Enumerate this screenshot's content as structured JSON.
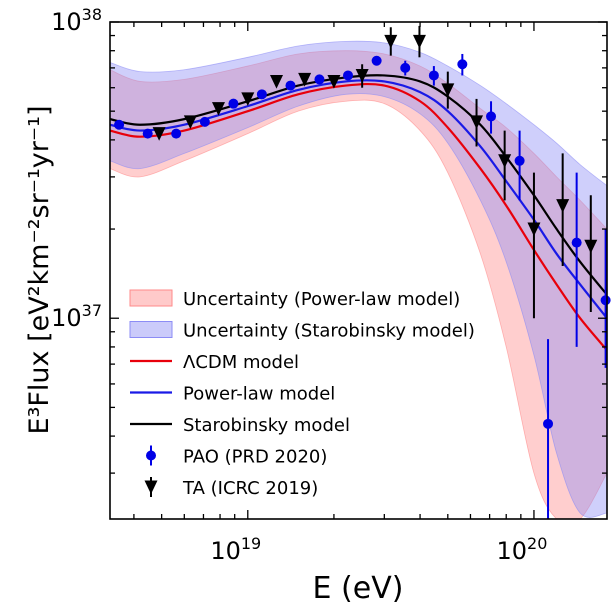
{
  "chart_data": {
    "type": "scatter",
    "title": "",
    "xlabel": "E (eV)",
    "ylabel": "E³Flux [eV²km⁻²sr⁻¹yr⁻¹]",
    "xscale": "log",
    "yscale": "log",
    "xlim": [
      3.3e+18,
      1.8e+20
    ],
    "ylim": [
      2.1e+36,
      1e+38
    ],
    "x_ticks": [
      {
        "value": 1e+19,
        "base": "10",
        "exp": "19"
      },
      {
        "value": 1e+20,
        "base": "10",
        "exp": "20"
      }
    ],
    "y_ticks": [
      {
        "value": 1e+37,
        "base": "10",
        "exp": "37"
      },
      {
        "value": 1e+38,
        "base": "10",
        "exp": "38"
      }
    ],
    "bands": [
      {
        "name": "Uncertainty (Power-law model)",
        "color": "#ff8a8a",
        "opacity": 0.42,
        "x": [
          3.3e+18,
          4.2e+18,
          6e+18,
          1e+19,
          1.5e+19,
          2.2e+19,
          3e+19,
          4e+19,
          5e+19,
          6.5e+19,
          8e+19,
          1e+20,
          1.2e+20,
          1.45e+20,
          1.8e+20
        ],
        "upper": [
          6.9e+37,
          6.3e+37,
          6.4e+37,
          7.1e+37,
          7.8e+37,
          8e+37,
          7.8e+37,
          7.1e+37,
          6.2e+37,
          5.1e+37,
          4.4e+37,
          3.6e+37,
          3e+37,
          2.5e+37,
          2e+37
        ],
        "lower": [
          3.2e+37,
          3e+37,
          3.4e+37,
          4.2e+37,
          5e+37,
          5.4e+37,
          5.3e+37,
          4.3e+37,
          3.1e+37,
          1.65e+37,
          8e+36,
          3e+36,
          2.1e+36,
          2.1e+36,
          3e+36
        ]
      },
      {
        "name": "Uncertainty (Starobinsky model)",
        "color": "#8c8cf5",
        "opacity": 0.42,
        "x": [
          3.3e+18,
          4.2e+18,
          6e+18,
          1e+19,
          1.5e+19,
          2.2e+19,
          3e+19,
          4e+19,
          5e+19,
          6.5e+19,
          8e+19,
          1e+20,
          1.2e+20,
          1.45e+20,
          1.8e+20
        ],
        "upper": [
          7.3e+37,
          6.8e+37,
          6.9e+37,
          7.6e+37,
          8.3e+37,
          8.6e+37,
          8.5e+37,
          7.9e+37,
          7.1e+37,
          6.1e+37,
          5.3e+37,
          4.5e+37,
          3.9e+37,
          3.3e+37,
          2.8e+37
        ],
        "lower": [
          3.4e+37,
          3.2e+37,
          3.6e+37,
          4.4e+37,
          5.2e+37,
          5.7e+37,
          5.6e+37,
          4.9e+37,
          3.9e+37,
          2.5e+37,
          1.55e+37,
          7.5e+36,
          3.5e+36,
          2.2e+36,
          2.2e+36
        ]
      }
    ],
    "series": [
      {
        "name": "ΛCDM model",
        "color": "#e8000b",
        "x": [
          3.3e+18,
          4.2e+18,
          6e+18,
          1e+19,
          1.5e+19,
          2.2e+19,
          3e+19,
          4e+19,
          5e+19,
          6.5e+19,
          8e+19,
          1e+20,
          1.2e+20,
          1.45e+20,
          1.8e+20
        ],
        "values": [
          4.3e+37,
          4.1e+37,
          4.3e+37,
          5e+37,
          5.7e+37,
          6.1e+37,
          6.1e+37,
          5.4e+37,
          4.4e+37,
          3.2e+37,
          2.4e+37,
          1.7e+37,
          1.3e+37,
          1e+37,
          7.8e+36
        ]
      },
      {
        "name": "Power-law model",
        "color": "#1a1ae6",
        "x": [
          3.3e+18,
          4.2e+18,
          6e+18,
          1e+19,
          1.5e+19,
          2.2e+19,
          3e+19,
          4e+19,
          5e+19,
          6.5e+19,
          8e+19,
          1e+20,
          1.2e+20,
          1.45e+20,
          1.8e+20
        ],
        "values": [
          4.5e+37,
          4.3e+37,
          4.5e+37,
          5.2e+37,
          5.9e+37,
          6.3e+37,
          6.3e+37,
          5.8e+37,
          5e+37,
          3.8e+37,
          2.9e+37,
          2.15e+37,
          1.65e+37,
          1.3e+37,
          1e+37
        ]
      },
      {
        "name": "Starobinsky model",
        "color": "#000000",
        "x": [
          3.3e+18,
          4.2e+18,
          6e+18,
          1e+19,
          1.5e+19,
          2.2e+19,
          3e+19,
          4e+19,
          5e+19,
          6.5e+19,
          8e+19,
          1e+20,
          1.2e+20,
          1.45e+20,
          1.8e+20
        ],
        "values": [
          4.7e+37,
          4.5e+37,
          4.7e+37,
          5.4e+37,
          6.1e+37,
          6.5e+37,
          6.6e+37,
          6.3e+37,
          5.6e+37,
          4.5e+37,
          3.5e+37,
          2.6e+37,
          2e+37,
          1.55e+37,
          1.2e+37
        ]
      }
    ],
    "points": [
      {
        "name": "PAO (PRD 2020)",
        "marker": "circle",
        "color": "#0000e6",
        "x": [
          3.55e+18,
          4.47e+18,
          5.62e+18,
          7.08e+18,
          8.91e+18,
          1.12e+19,
          1.41e+19,
          1.78e+19,
          2.24e+19,
          2.82e+19,
          3.55e+19,
          4.47e+19,
          5.62e+19,
          7.08e+19,
          8.91e+19,
          1.12e+20,
          1.41e+20,
          1.78e+20
        ],
        "y": [
          4.5e+37,
          4.2e+37,
          4.2e+37,
          4.6e+37,
          5.3e+37,
          5.7e+37,
          6.1e+37,
          6.4e+37,
          6.6e+37,
          7.4e+37,
          7e+37,
          6.6e+37,
          7.2e+37,
          4.8e+37,
          3.4e+37,
          4.4e+36,
          1.8e+37,
          1.15e+37
        ],
        "y_lo": [
          4.5e+37,
          4.2e+37,
          4.2e+37,
          4.6e+37,
          5.3e+37,
          5.7e+37,
          6.1e+37,
          6.4e+37,
          6.6e+37,
          7.4e+37,
          6.6e+37,
          6.1e+37,
          6.6e+37,
          4.2e+37,
          2.5e+37,
          2.1e+36,
          8e+36,
          6.8e+36
        ],
        "y_hi": [
          4.5e+37,
          4.2e+37,
          4.2e+37,
          4.6e+37,
          5.3e+37,
          5.7e+37,
          6.1e+37,
          6.4e+37,
          6.6e+37,
          7.4e+37,
          7.4e+37,
          7.1e+37,
          7.8e+37,
          5.4e+37,
          4.3e+37,
          8.5e+36,
          3.1e+37,
          2e+37
        ]
      },
      {
        "name": "TA (ICRC 2019)",
        "marker": "triangle-down",
        "color": "#000000",
        "x": [
          4.9e+18,
          6.3e+18,
          7.9e+18,
          1e+19,
          1.26e+19,
          1.58e+19,
          2e+19,
          2.51e+19,
          3.16e+19,
          3.98e+19,
          5e+19,
          6.3e+19,
          7.9e+19,
          1e+20,
          1.26e+20,
          1.58e+20
        ],
        "y": [
          4.2e+37,
          4.6e+37,
          5.1e+37,
          5.5e+37,
          6.3e+37,
          6.4e+37,
          6.3e+37,
          6.6e+37,
          8.6e+37,
          8.6e+37,
          5.9e+37,
          4.6e+37,
          3.4e+37,
          2e+37,
          2.4e+37,
          1.75e+37
        ],
        "y_lo": [
          4.2e+37,
          4.6e+37,
          5.1e+37,
          5.5e+37,
          6.3e+37,
          6.4e+37,
          6.3e+37,
          6e+37,
          7.7e+37,
          7.6e+37,
          5.1e+37,
          3.8e+37,
          2.5e+37,
          1e+37,
          1.5e+37,
          1.05e+37
        ],
        "y_hi": [
          4.2e+37,
          4.6e+37,
          5.1e+37,
          5.5e+37,
          6.3e+37,
          6.4e+37,
          6.3e+37,
          7.2e+37,
          9.6e+37,
          9.7e+37,
          6.8e+37,
          5.5e+37,
          4.3e+37,
          3.1e+37,
          3.6e+37,
          2.6e+37
        ]
      }
    ],
    "legend": {
      "placement": "lower-left",
      "entries": [
        {
          "label": "Uncertainty (Power-law model)",
          "kind": "patch",
          "color": "#ff8a8a"
        },
        {
          "label": "Uncertainty (Starobinsky model)",
          "kind": "patch",
          "color": "#8c8cf5"
        },
        {
          "label": "ΛCDM model",
          "kind": "line",
          "color": "#e8000b"
        },
        {
          "label": "Power-law model",
          "kind": "line",
          "color": "#1a1ae6"
        },
        {
          "label": "Starobinsky model",
          "kind": "line",
          "color": "#000000"
        },
        {
          "label": "PAO (PRD 2020)",
          "kind": "circle",
          "color": "#0000e6"
        },
        {
          "label": "TA (ICRC 2019)",
          "kind": "triangle-down",
          "color": "#000000"
        }
      ]
    }
  }
}
